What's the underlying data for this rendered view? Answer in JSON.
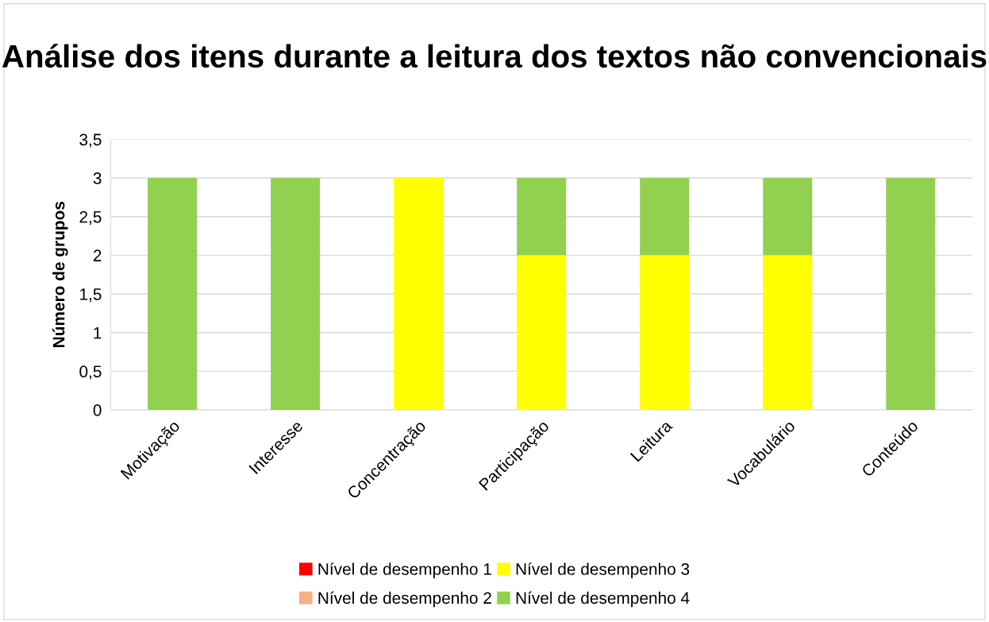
{
  "chart_data": {
    "type": "bar",
    "title": "Análise dos itens durante a leitura dos textos não convencionais",
    "ylabel": "Número de grupos",
    "categories": [
      "Motivação",
      "Interesse",
      "Concentração",
      "Participação",
      "Leitura",
      "Vocabulário",
      "Conteúdo"
    ],
    "stacked": true,
    "series": [
      {
        "name": "Nível de desempenho 1",
        "color": "#ff0000",
        "values": [
          0,
          0,
          0,
          0,
          0,
          0,
          0
        ]
      },
      {
        "name": "Nível de desempenho 2",
        "color": "#f4b183",
        "values": [
          0,
          0,
          0,
          0,
          0,
          0,
          0
        ]
      },
      {
        "name": "Nível de desempenho 3",
        "color": "#ffff00",
        "values": [
          0,
          0,
          3,
          2,
          2,
          2,
          0
        ]
      },
      {
        "name": "Nível de desempenho 4",
        "color": "#92d050",
        "values": [
          3,
          3,
          0,
          1,
          1,
          1,
          3
        ]
      }
    ],
    "ylim": [
      0,
      3.5
    ],
    "yticks": [
      0,
      {
        "value": 0.5,
        "label": "0,5"
      },
      1,
      {
        "value": 1.5,
        "label": "1,5"
      },
      2,
      {
        "value": 2.5,
        "label": "2,5"
      },
      3,
      {
        "value": 3.5,
        "label": "3,5"
      }
    ],
    "grid": "y",
    "legend": "bottom"
  }
}
